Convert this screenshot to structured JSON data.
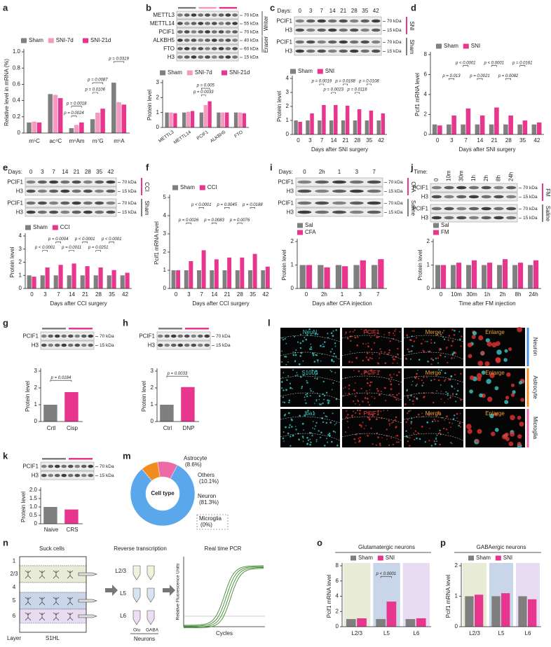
{
  "chart_data": [
    {
      "label": "a",
      "type": "bar",
      "categories": [
        "m⁵C",
        "ac⁴C",
        "m⁶Am",
        "m⁷G",
        "m⁶A"
      ],
      "series": [
        {
          "name": "Sham",
          "color": "#7f7f7f",
          "values": [
            0.13,
            0.48,
            0.06,
            0.17,
            0.62
          ]
        },
        {
          "name": "SNI-7d",
          "color": "#f49ac1",
          "values": [
            0.14,
            0.47,
            0.1,
            0.25,
            0.38
          ]
        },
        {
          "name": "SNI-21d",
          "color": "#e8368f",
          "values": [
            0.13,
            0.43,
            0.13,
            0.3,
            0.35
          ]
        }
      ],
      "ylim": [
        0,
        1
      ],
      "yticks": [
        0,
        0.2,
        0.4,
        0.6,
        0.8,
        {
          "value": 1,
          "label": "1.0"
        }
      ],
      "ylabel": "Relative level in mRNA (%)",
      "annotations": [
        "p = 0.0018",
        "p = 0.0024",
        "p = 0.0087",
        "p = 0.0106",
        "p = 0.0319"
      ]
    },
    {
      "label": "b",
      "type": "bar",
      "categories": [
        "METTL3",
        "METTL14",
        "PCIF1",
        "ALKBH5",
        "FTO"
      ],
      "series": [
        {
          "name": "Sham",
          "color": "#7f7f7f",
          "values": [
            1,
            1,
            1,
            1,
            1
          ]
        },
        {
          "name": "SNI-7d",
          "color": "#f49ac1",
          "values": [
            1.0,
            1.05,
            1.5,
            1.0,
            1.0
          ]
        },
        {
          "name": "SNI-21d",
          "color": "#e8368f",
          "values": [
            0.95,
            1.1,
            1.75,
            1.0,
            0.95
          ]
        }
      ],
      "ylim": [
        0,
        3
      ],
      "yticks": [
        0,
        1,
        2,
        3
      ],
      "ylabel": "Protein level",
      "annotations": [
        "p = 0.005",
        "p = 0.0033"
      ]
    },
    {
      "label": "c",
      "type": "bar",
      "categories": [
        "0",
        "3",
        "7",
        "14",
        "21",
        "28",
        "35",
        "42"
      ],
      "series": [
        {
          "name": "Sham",
          "color": "#7f7f7f",
          "values": [
            1,
            1,
            1,
            1,
            1,
            1,
            1,
            1
          ]
        },
        {
          "name": "SNI",
          "color": "#e8368f",
          "values": [
            0.9,
            1.5,
            2.1,
            2.1,
            2.05,
            1.8,
            1.7,
            1.5
          ]
        }
      ],
      "ylim": [
        0,
        4
      ],
      "yticks": [
        0,
        1,
        2,
        3,
        4
      ],
      "ylabel": "Protein level",
      "xlabel": "Days after SNI surgery",
      "annotations": [
        "p = 0.0019",
        "p = 0.0168",
        "p = 0.0108",
        "p = 0.0023",
        "p = 0.0116"
      ]
    },
    {
      "label": "d",
      "type": "bar",
      "categories": [
        "0",
        "3",
        "7",
        "14",
        "21",
        "28",
        "35",
        "42"
      ],
      "series": [
        {
          "name": "Sham",
          "color": "#7f7f7f",
          "values": [
            1,
            1,
            1,
            1,
            1,
            1,
            1,
            1
          ]
        },
        {
          "name": "SNI",
          "color": "#e8368f",
          "values": [
            0.9,
            1.9,
            2.6,
            1.9,
            2.7,
            1.9,
            1.4,
            1.2
          ]
        }
      ],
      "ylim": [
        0,
        8
      ],
      "yticks": [
        0,
        2,
        4,
        6,
        8
      ],
      "ylabel": "Pcif1 mRNA level",
      "xlabel": "Days after SNI surgery",
      "annotations": [
        "p < 0.0001",
        "p < 0.0001",
        "p = 0.0161",
        "p = 0.013",
        "p = 0.0021",
        "p = 0.0082"
      ]
    },
    {
      "label": "e",
      "type": "bar",
      "categories": [
        "0",
        "3",
        "7",
        "14",
        "21",
        "28",
        "35",
        "42"
      ],
      "series": [
        {
          "name": "Sham",
          "color": "#7f7f7f",
          "values": [
            1,
            1,
            1,
            1,
            1,
            1,
            1,
            1
          ]
        },
        {
          "name": "CCI",
          "color": "#e8368f",
          "values": [
            0.9,
            1.6,
            1.8,
            1.9,
            1.7,
            1.6,
            1.4,
            1.2
          ]
        }
      ],
      "ylim": [
        0,
        4
      ],
      "yticks": [
        0,
        1,
        2,
        3,
        4
      ],
      "ylabel": "Protein level",
      "xlabel": "Days after CCI surgery",
      "annotations": [
        "p = 0.0004",
        "p < 0.0001",
        "p < 0.0001",
        "p < 0.0001",
        "p = 0.0011",
        "p = 0.0251"
      ]
    },
    {
      "label": "f",
      "type": "bar",
      "categories": [
        "0",
        "3",
        "7",
        "14",
        "21",
        "28",
        "35",
        "42"
      ],
      "series": [
        {
          "name": "Sham",
          "color": "#7f7f7f",
          "values": [
            1,
            1,
            1,
            1,
            1,
            1,
            1,
            1
          ]
        },
        {
          "name": "CCI",
          "color": "#e8368f",
          "values": [
            1.0,
            1.5,
            2.1,
            1.6,
            1.7,
            1.7,
            1.9,
            1.2
          ]
        }
      ],
      "ylim": [
        0,
        5
      ],
      "yticks": [
        0,
        1,
        2,
        3,
        4,
        5
      ],
      "ylabel": "Pcif1 mRNA level",
      "xlabel": "Days after CCI surgery",
      "annotations": [
        "p < 0.0001",
        "p = 0.0045",
        "p = 0.0188",
        "p = 0.0026",
        "p = 0.0083",
        "p = 0.0076"
      ]
    },
    {
      "label": "i",
      "type": "bar",
      "categories": [
        "0",
        "2h",
        "1",
        "3",
        "7"
      ],
      "series": [
        {
          "name": "Sal",
          "color": "#7f7f7f",
          "values": [
            1,
            1,
            1,
            1,
            1
          ]
        },
        {
          "name": "CFA",
          "color": "#e8368f",
          "values": [
            1.0,
            0.9,
            0.95,
            1.2,
            1.25
          ]
        }
      ],
      "ylim": [
        0,
        2
      ],
      "yticks": [
        0,
        1,
        2
      ],
      "ylabel": "Protein level",
      "xlabel": "Days after CFA injection",
      "annotations": []
    },
    {
      "label": "j",
      "type": "bar",
      "categories": [
        "0",
        "10m",
        "30m",
        "1h",
        "2h",
        "8h",
        "24h"
      ],
      "series": [
        {
          "name": "Sal",
          "color": "#7f7f7f",
          "values": [
            1,
            1,
            1,
            1,
            1,
            1,
            1
          ]
        },
        {
          "name": "FM",
          "color": "#e8368f",
          "values": [
            1.0,
            1.1,
            1.2,
            1.1,
            1.25,
            1.1,
            1.2
          ]
        }
      ],
      "ylim": [
        0,
        2
      ],
      "yticks": [
        0,
        1,
        2
      ],
      "ylabel": "Protein level",
      "xlabel": "Time after FM injection",
      "annotations": []
    },
    {
      "label": "g",
      "type": "bar",
      "categories": [
        "Crtl",
        "Cisp"
      ],
      "values": [
        1.0,
        1.75
      ],
      "colors": [
        "#7f7f7f",
        "#e8368f"
      ],
      "ylim": [
        0,
        3
      ],
      "yticks": [
        0,
        1,
        2,
        3
      ],
      "ylabel": "Protein level",
      "annotations": [
        "p = 0.0184"
      ]
    },
    {
      "label": "h",
      "type": "bar",
      "categories": [
        "Ctrl",
        "DNP"
      ],
      "values": [
        1.0,
        2.05
      ],
      "colors": [
        "#7f7f7f",
        "#e8368f"
      ],
      "ylim": [
        0,
        3
      ],
      "yticks": [
        0,
        1,
        2,
        3
      ],
      "ylabel": "Protein level",
      "annotations": [
        "p = 0.0033"
      ]
    },
    {
      "label": "k",
      "type": "bar",
      "categories": [
        "Naive",
        "CRS"
      ],
      "values": [
        1.0,
        0.85
      ],
      "colors": [
        "#7f7f7f",
        "#e8368f"
      ],
      "ylim": [
        0,
        2
      ],
      "yticks": [
        0,
        0.5,
        {
          "value": 1,
          "label": "1.0"
        },
        1.5,
        {
          "value": 2,
          "label": "2.0"
        }
      ],
      "ylabel": "Protein level",
      "annotations": []
    },
    {
      "label": "m",
      "type": "donut",
      "center": "Cell type",
      "categories": [
        "Astrocyte",
        "Others",
        "Neuron",
        "Microglia"
      ],
      "values": [
        8.6,
        10.1,
        81.3,
        0
      ],
      "value_labels": [
        "(8.6%)",
        "(10.1%)",
        "(81.3%)",
        "(0%)"
      ],
      "colors": [
        "#f28c1e",
        "#ee6aa7",
        "#5aa7ec",
        "#9a9a9a"
      ]
    },
    {
      "label": "o",
      "type": "bar",
      "title": "Glutamatergic neurons",
      "categories": [
        "L2/3",
        "L5",
        "L6"
      ],
      "series": [
        {
          "name": "Sham",
          "color": "#7f7f7f",
          "values": [
            1,
            1,
            1
          ]
        },
        {
          "name": "SNI",
          "color": "#e8368f",
          "values": [
            1.1,
            3.3,
            1.1
          ]
        }
      ],
      "backgrounds": [
        "#e8ecd6",
        "#c9d5e8",
        "#e8dcf3"
      ],
      "ylim": [
        0,
        8
      ],
      "yticks": [
        0,
        2,
        4,
        6,
        8
      ],
      "ylabel": "Pcif1 mRNA level",
      "annotations": [
        "p < 0.0001"
      ]
    },
    {
      "label": "p",
      "type": "bar",
      "title": "GABAergic neurons",
      "categories": [
        "L2/3",
        "L5",
        "L6"
      ],
      "series": [
        {
          "name": "Sham",
          "color": "#7f7f7f",
          "values": [
            1,
            1,
            1
          ]
        },
        {
          "name": "SNI",
          "color": "#e8368f",
          "values": [
            1.05,
            1.1,
            0.9
          ]
        }
      ],
      "backgrounds": [
        "#e8ecd6",
        "#c9d5e8",
        "#e8dcf3"
      ],
      "ylim": [
        0,
        2
      ],
      "yticks": [
        0,
        1,
        2
      ],
      "ylabel": "Pcif1 mRNA level",
      "annotations": []
    }
  ],
  "blots": [
    {
      "groups": [
        {
          "rows": [
            {
              "protein": "METTL3",
              "kda": "70 kDa"
            },
            {
              "protein": "METTL14",
              "kda": "55 kDa"
            },
            {
              "protein": "PCIF1",
              "kda": "70 kDa"
            },
            {
              "protein": "ALKBH5",
              "kda": "40 kDa"
            },
            {
              "protein": "FTO",
              "kda": "60 kDa"
            },
            {
              "protein": "H3",
              "kda": "15 kDa"
            }
          ]
        }
      ],
      "brackets": [
        "Writer",
        "Eraser"
      ]
    },
    {
      "header": "Days:",
      "timepoints": [
        "0",
        "3",
        "7",
        "14",
        "21",
        "28",
        "35",
        "42"
      ],
      "groups": [
        {
          "side": "SNI",
          "rows": [
            {
              "protein": "PCIF1",
              "kda": "70 kDa"
            },
            {
              "protein": "H3",
              "kda": "15 kDa"
            }
          ]
        },
        {
          "side": "Sham",
          "rows": [
            {
              "protein": "PCIF1",
              "kda": "70 kDa"
            },
            {
              "protein": "H3",
              "kda": "15 kDa"
            }
          ]
        }
      ]
    },
    {
      "header": "Days:",
      "timepoints": [
        "0",
        "3",
        "7",
        "14",
        "21",
        "28",
        "35",
        "42"
      ],
      "groups": [
        {
          "side": "CCI",
          "rows": [
            {
              "protein": "PCIF1",
              "kda": "70 kDa"
            },
            {
              "protein": "H3",
              "kda": "15 kDa"
            }
          ]
        },
        {
          "side": "Sham",
          "rows": [
            {
              "protein": "PCIF1",
              "kda": "70 kDa"
            },
            {
              "protein": "H3",
              "kda": "15 kDa"
            }
          ]
        }
      ]
    },
    {
      "header": "Days:",
      "timepoints": [
        "0",
        "2h",
        "1",
        "3",
        "7"
      ],
      "groups": [
        {
          "side": "CFA",
          "rows": [
            {
              "protein": "PCIF1",
              "kda": "70 kDa"
            },
            {
              "protein": "H3",
              "kda": "15 kDa"
            }
          ]
        },
        {
          "side": "Saline",
          "rows": [
            {
              "protein": "PCIF1",
              "kda": "70 kDa"
            },
            {
              "protein": "H3",
              "kda": "15 kDa"
            }
          ]
        }
      ]
    },
    {
      "header": "Time:",
      "timepoints": [
        "0",
        "10m",
        "30m",
        "1h",
        "2h",
        "8h",
        "24h"
      ],
      "groups": [
        {
          "side": "FM",
          "rows": [
            {
              "protein": "PCIF1",
              "kda": "70 kDa"
            },
            {
              "protein": "H3",
              "kda": "15 kDa"
            }
          ]
        },
        {
          "side": "Saline",
          "rows": [
            {
              "protein": "PCIF1",
              "kda": "70 kDa"
            },
            {
              "protein": "H3",
              "kda": "15 kDa"
            }
          ]
        }
      ]
    },
    {
      "groups": [
        {
          "rows": [
            {
              "protein": "PCIF1",
              "kda": "70 kDa"
            },
            {
              "protein": "H3",
              "kda": "15 kDa"
            }
          ]
        }
      ]
    },
    {
      "groups": [
        {
          "rows": [
            {
              "protein": "PCIF1",
              "kda": "70 kDa"
            },
            {
              "protein": "H3",
              "kda": "15 kDa"
            }
          ]
        }
      ]
    },
    {
      "groups": [
        {
          "rows": [
            {
              "protein": "PCIF1",
              "kda": "70 kDa"
            },
            {
              "protein": "H3",
              "kda": "15 kDa"
            }
          ]
        }
      ]
    }
  ],
  "images": {
    "label": "l",
    "rows": [
      {
        "labels": [
          "NeuN",
          "PCIF1",
          "Merge",
          "Enlarge"
        ],
        "cell": "Neuron"
      },
      {
        "labels": [
          "S100β",
          "PCIF1",
          "Merge",
          "Enlarge"
        ],
        "cell": "Astrocyte"
      },
      {
        "labels": [
          "Iba1",
          "PCIF1",
          "Merge",
          "Enlarge"
        ],
        "cell": "Microglia"
      }
    ]
  },
  "diagram": {
    "label": "n",
    "step1": "Suck cells",
    "layers": [
      "1",
      "2/3",
      "4",
      "5",
      "6"
    ],
    "layer_title": "Layer",
    "region": "S1HL",
    "step2": "Reverse transcription",
    "tubes": [
      "L2/3",
      "L5",
      "L6"
    ],
    "types": [
      "Glu",
      "GABA"
    ],
    "types_title": "Neurons",
    "step3": "Real time PCR",
    "y_axis": "Relative Fluorescence Units",
    "x_axis": "Cycles"
  }
}
